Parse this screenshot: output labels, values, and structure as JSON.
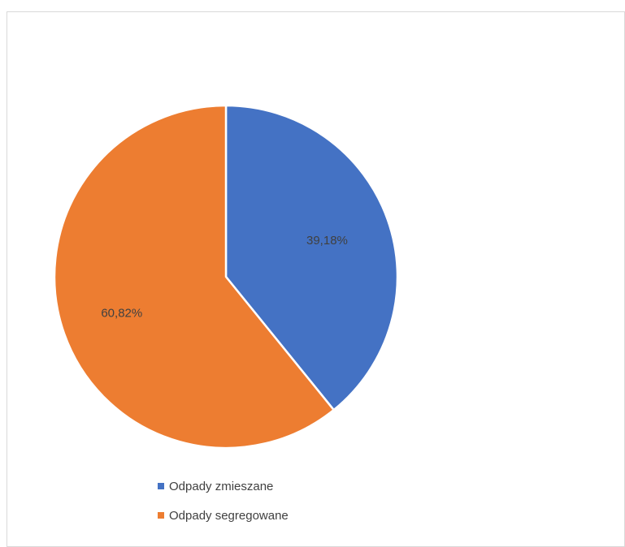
{
  "chart_data": {
    "type": "pie",
    "categories": [
      "Odpady zmieszane",
      "Odpady segregowane"
    ],
    "values": [
      39.18,
      60.82
    ],
    "data_labels": [
      "39,18%",
      "60,82%"
    ],
    "colors": [
      "#4472c4",
      "#ed7d31"
    ],
    "legend_position": "bottom",
    "start_angle": "12 o'clock",
    "direction": "clockwise"
  }
}
